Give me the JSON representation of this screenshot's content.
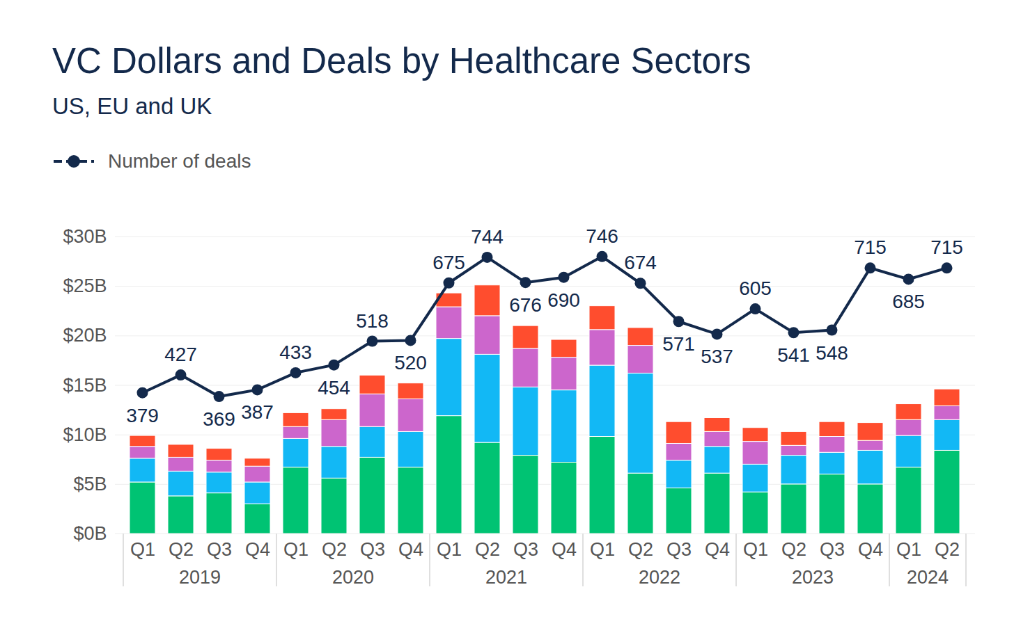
{
  "chart_data": {
    "type": "bar",
    "title": "VC Dollars and Deals by Healthcare Sectors",
    "subtitle": "US, EU and UK",
    "categories": [
      "Q1",
      "Q2",
      "Q3",
      "Q4",
      "Q1",
      "Q2",
      "Q3",
      "Q4",
      "Q1",
      "Q2",
      "Q3",
      "Q4",
      "Q1",
      "Q2",
      "Q3",
      "Q4",
      "Q1",
      "Q2",
      "Q3",
      "Q4",
      "Q1",
      "Q2"
    ],
    "years": [
      "2019",
      "2019",
      "2019",
      "2019",
      "2020",
      "2020",
      "2020",
      "2020",
      "2021",
      "2021",
      "2021",
      "2021",
      "2022",
      "2022",
      "2022",
      "2022",
      "2023",
      "2023",
      "2023",
      "2023",
      "2024",
      "2024"
    ],
    "stacked": true,
    "grid": true,
    "legend": "top-left",
    "ylim": [
      0,
      30
    ],
    "yticks": [
      {
        "value": 0,
        "label": "$0B"
      },
      {
        "value": 5,
        "label": "$5B"
      },
      {
        "value": 10,
        "label": "$10B"
      },
      {
        "value": 15,
        "label": "$15B"
      },
      {
        "value": 20,
        "label": "$20B"
      },
      {
        "value": 25,
        "label": "$25B"
      },
      {
        "value": 30,
        "label": "$30B"
      }
    ],
    "y2lim": [
      0,
      800
    ],
    "y2ticks": [],
    "series": [
      {
        "type": "bar",
        "color": "#00c373",
        "values": [
          5.2,
          3.8,
          4.1,
          3.0,
          6.7,
          5.6,
          7.7,
          6.7,
          11.9,
          9.2,
          7.9,
          7.2,
          9.8,
          6.1,
          4.6,
          6.1,
          4.2,
          5.0,
          6.0,
          5.0,
          6.7,
          8.4
        ]
      },
      {
        "type": "bar",
        "color": "#12b8f5",
        "values": [
          2.4,
          2.5,
          2.1,
          2.2,
          2.9,
          3.2,
          3.1,
          3.6,
          7.8,
          8.9,
          6.9,
          7.3,
          7.2,
          10.1,
          2.8,
          2.7,
          2.8,
          2.9,
          2.2,
          3.4,
          3.2,
          3.1
        ]
      },
      {
        "type": "bar",
        "color": "#cc66cc",
        "values": [
          1.2,
          1.4,
          1.2,
          1.6,
          1.2,
          2.7,
          3.3,
          3.3,
          3.2,
          3.9,
          3.9,
          3.3,
          3.6,
          2.8,
          1.7,
          1.5,
          2.3,
          1.0,
          1.6,
          1.0,
          1.6,
          1.4
        ]
      },
      {
        "type": "bar",
        "color": "#ff4d2e",
        "values": [
          1.1,
          1.3,
          1.2,
          0.8,
          1.4,
          1.1,
          1.9,
          1.6,
          1.4,
          3.1,
          2.3,
          1.8,
          2.4,
          1.8,
          2.2,
          1.4,
          1.4,
          1.4,
          1.5,
          1.8,
          1.6,
          1.7
        ]
      },
      {
        "name": "Number of deals",
        "type": "line",
        "axis": "y2",
        "color": "#13294b",
        "marker": "circle",
        "data_labels": true,
        "values": [
          379,
          427,
          369,
          387,
          433,
          454,
          518,
          520,
          675,
          744,
          676,
          690,
          746,
          674,
          571,
          537,
          605,
          541,
          548,
          715,
          685,
          715
        ]
      }
    ]
  }
}
